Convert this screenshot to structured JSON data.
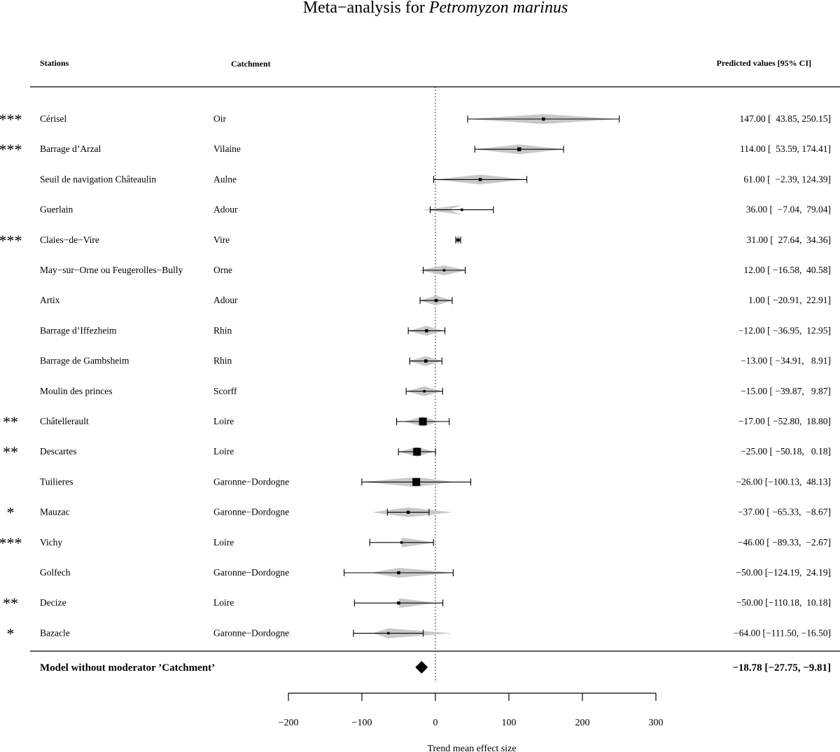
{
  "chart_data": {
    "type": "forest",
    "title_prefix": "Meta−analysis for ",
    "title_species": "Petromyzon marinus",
    "headers": {
      "stations": "Stations",
      "catchment": "Catchment",
      "predicted": "Predicted values [95% CI]"
    },
    "xlabel": "Trend mean effect size",
    "xlim": [
      -200,
      300
    ],
    "xticks": [
      -200,
      -100,
      0,
      100,
      200,
      300
    ],
    "xtick_labels": [
      "−200",
      "−100",
      "0",
      "100",
      "200",
      "300"
    ],
    "reference_line": 0,
    "rows": [
      {
        "sig": "***",
        "station": "Cérisel",
        "catchment": "Oir",
        "estimate": 147.0,
        "ci_low": 43.85,
        "ci_high": 250.15,
        "pred_low": 44,
        "pred_high": 250,
        "marker": "small",
        "label": "147.00 [  43.85, 250.15]"
      },
      {
        "sig": "***",
        "station": "Barrage d’Arzal",
        "catchment": "Vilaine",
        "estimate": 114.0,
        "ci_low": 53.59,
        "ci_high": 174.41,
        "pred_low": 54,
        "pred_high": 174,
        "marker": "medium",
        "label": "114.00 [  53.59, 174.41]"
      },
      {
        "sig": "",
        "station": "Seuil de navigation Châteaulin",
        "catchment": "Aulne",
        "estimate": 61.0,
        "ci_low": -2.39,
        "ci_high": 124.39,
        "pred_low": -2,
        "pred_high": 124,
        "marker": "small",
        "label": "61.00 [  −2.39, 124.39]"
      },
      {
        "sig": "",
        "station": "Guerlain",
        "catchment": "Adour",
        "estimate": 36.0,
        "ci_low": -7.04,
        "ci_high": 79.04,
        "pred_low": -17,
        "pred_high": 19,
        "marker": "tiny",
        "label": "36.00 [  −7.04,  79.04]"
      },
      {
        "sig": "***",
        "station": "Claies−de−Vire",
        "catchment": "Vire",
        "estimate": 31.0,
        "ci_low": 27.64,
        "ci_high": 34.36,
        "pred_low": 27,
        "pred_high": 35,
        "marker": "small",
        "label": "31.00 [  27.64,  34.36]"
      },
      {
        "sig": "",
        "station": "May−sur−Orne ou Feugerolles−Bully",
        "catchment": "Orne",
        "estimate": 12.0,
        "ci_low": -16.58,
        "ci_high": 40.58,
        "pred_low": -22,
        "pred_high": 43,
        "marker": "tiny",
        "label": "12.00 [ −16.58,  40.58]"
      },
      {
        "sig": "",
        "station": "Artix",
        "catchment": "Adour",
        "estimate": 1.0,
        "ci_low": -20.91,
        "ci_high": 22.91,
        "pred_low": -22,
        "pred_high": 24,
        "marker": "small",
        "label": "1.00 [ −20.91,  22.91]"
      },
      {
        "sig": "",
        "station": "Barrage d’Iffezheim",
        "catchment": "Rhin",
        "estimate": -12.0,
        "ci_low": -36.95,
        "ci_high": 12.95,
        "pred_low": -37,
        "pred_high": 11,
        "marker": "small",
        "label": "−12.00 [ −36.95,  12.95]"
      },
      {
        "sig": "",
        "station": "Barrage de Gambsheim",
        "catchment": "Rhin",
        "estimate": -13.0,
        "ci_low": -34.91,
        "ci_high": 8.91,
        "pred_low": -37,
        "pred_high": 10,
        "marker": "small",
        "label": "−13.00 [ −34.91,   8.91]"
      },
      {
        "sig": "",
        "station": "Moulin des princes",
        "catchment": "Scorff",
        "estimate": -15.0,
        "ci_low": -39.87,
        "ci_high": 9.87,
        "pred_low": -40,
        "pred_high": 10,
        "marker": "tiny",
        "label": "−15.00 [ −39.87,   9.87]"
      },
      {
        "sig": "**",
        "station": "Châtellerault",
        "catchment": "Loire",
        "estimate": -17.0,
        "ci_low": -52.8,
        "ci_high": 18.8,
        "pred_low": -43,
        "pred_high": 5,
        "marker": "large",
        "label": "−17.00 [ −52.80,  18.80]"
      },
      {
        "sig": "**",
        "station": "Descartes",
        "catchment": "Loire",
        "estimate": -25.0,
        "ci_low": -50.18,
        "ci_high": 0.18,
        "pred_low": -50,
        "pred_high": -2,
        "marker": "large",
        "label": "−25.00 [ −50.18,   0.18]"
      },
      {
        "sig": "",
        "station": "Tuilieres",
        "catchment": "Garonne−Dordogne",
        "estimate": -26.0,
        "ci_low": -100.13,
        "ci_high": 48.13,
        "pred_low": -100,
        "pred_high": 25,
        "marker": "large",
        "label": "−26.00 [−100.13,  48.13]"
      },
      {
        "sig": "*",
        "station": "Mauzac",
        "catchment": "Garonne−Dordogne",
        "estimate": -37.0,
        "ci_low": -65.33,
        "ci_high": -8.67,
        "pred_low": -86,
        "pred_high": 23,
        "marker": "small",
        "label": "−37.00 [ −65.33,  −8.67]"
      },
      {
        "sig": "***",
        "station": "Vichy",
        "catchment": "Loire",
        "estimate": -46.0,
        "ci_low": -89.33,
        "ci_high": -2.67,
        "pred_low": -46,
        "pred_high": 0,
        "marker": "tiny",
        "label": "−46.00 [ −89.33,  −2.67]"
      },
      {
        "sig": "",
        "station": "Golfech",
        "catchment": "Garonne−Dordogne",
        "estimate": -50.0,
        "ci_low": -124.19,
        "ci_high": 24.19,
        "pred_low": -88,
        "pred_high": 25,
        "marker": "small",
        "label": "−50.00 [−124.19,  24.19]"
      },
      {
        "sig": "**",
        "station": "Decize",
        "catchment": "Loire",
        "estimate": -50.0,
        "ci_low": -110.18,
        "ci_high": 10.18,
        "pred_low": -48,
        "pred_high": 2,
        "marker": "small",
        "label": "−50.00 [−110.18,  10.18]"
      },
      {
        "sig": "*",
        "station": "Bazacle",
        "catchment": "Garonne−Dordogne",
        "estimate": -64.0,
        "ci_low": -111.5,
        "ci_high": -16.5,
        "pred_low": -86,
        "pred_high": 23,
        "marker": "tiny",
        "label": "−64.00 [−111.50, −16.50]"
      }
    ],
    "summary": {
      "label": "Model without moderator ’Catchment’",
      "estimate": -18.78,
      "ci_low": -27.75,
      "ci_high": -9.81,
      "value_label": "−18.78 [−27.75, −9.81]"
    },
    "colors": {
      "prediction_band": "#c8c8c8",
      "ink": "#000000"
    }
  }
}
